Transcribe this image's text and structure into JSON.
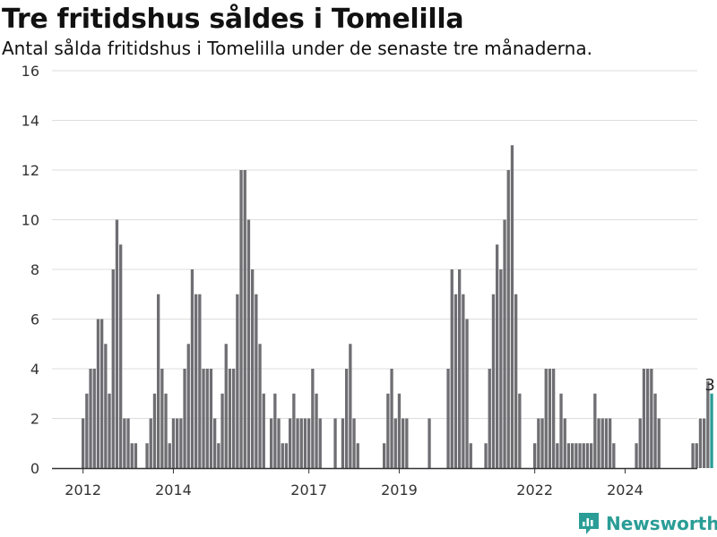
{
  "title": "Tre fritidshus såldes i Tomelilla",
  "subtitle": "Antal sålda fritidshus i Tomelilla under de senaste tre månaderna.",
  "brand": "Newsworthy",
  "colors": {
    "bar": "#6e6e73",
    "highlight": "#2a9d96",
    "grid": "#dddddd",
    "axis": "#333333",
    "brand": "#2a9d96"
  },
  "chart_data": {
    "type": "bar",
    "title": "Tre fritidshus såldes i Tomelilla",
    "subtitle": "Antal sålda fritidshus i Tomelilla under de senaste tre månaderna.",
    "xlabel": "",
    "ylabel": "",
    "ylim": [
      0,
      16
    ],
    "yticks": [
      0,
      2,
      4,
      6,
      8,
      10,
      12,
      14,
      16
    ],
    "xtick_labels": [
      "2012",
      "2014",
      "2017",
      "2019",
      "2022",
      "2024"
    ],
    "grid": true,
    "x_start": "2012-01",
    "frequency": "monthly",
    "values": [
      2,
      3,
      4,
      4,
      6,
      6,
      5,
      3,
      8,
      10,
      9,
      2,
      2,
      1,
      1,
      0,
      0,
      1,
      2,
      3,
      7,
      4,
      3,
      1,
      2,
      2,
      2,
      4,
      5,
      8,
      7,
      7,
      4,
      4,
      4,
      2,
      1,
      3,
      5,
      4,
      4,
      7,
      12,
      12,
      10,
      8,
      7,
      5,
      3,
      0,
      2,
      3,
      2,
      1,
      1,
      2,
      3,
      2,
      2,
      2,
      2,
      4,
      3,
      2,
      0,
      0,
      0,
      2,
      0,
      2,
      4,
      5,
      2,
      1,
      0,
      0,
      0,
      0,
      0,
      0,
      1,
      3,
      4,
      2,
      3,
      2,
      2,
      0,
      0,
      0,
      0,
      0,
      2,
      0,
      0,
      0,
      0,
      4,
      8,
      7,
      8,
      7,
      6,
      1,
      0,
      0,
      0,
      1,
      4,
      7,
      9,
      8,
      10,
      12,
      13,
      7,
      3,
      0,
      0,
      0,
      1,
      2,
      2,
      4,
      4,
      4,
      1,
      3,
      2,
      1,
      1,
      1,
      1,
      1,
      1,
      1,
      3,
      2,
      2,
      2,
      2,
      1,
      0,
      0,
      0,
      0,
      0,
      1,
      2,
      4,
      4,
      4,
      3,
      2,
      0,
      0,
      0,
      0,
      0,
      0,
      0,
      0,
      1,
      1,
      2,
      2,
      3.5,
      3
    ],
    "highlight_index": 167,
    "highlight_label": "3"
  }
}
